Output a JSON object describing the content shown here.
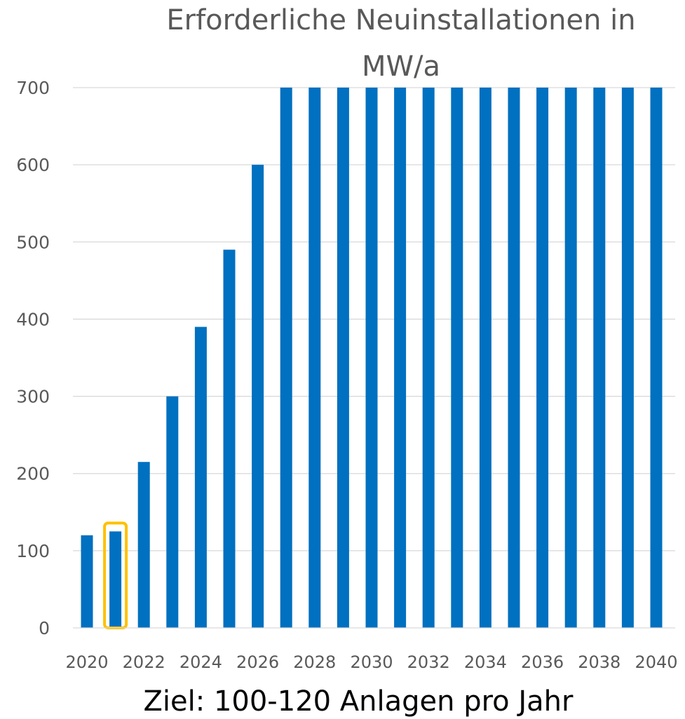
{
  "chart_data": {
    "type": "bar",
    "title_lines": [
      "Erforderliche Neuinstallationen in",
      "MW/a"
    ],
    "categories": [
      "2020",
      "2021",
      "2022",
      "2023",
      "2024",
      "2025",
      "2026",
      "2027",
      "2028",
      "2029",
      "2030",
      "2031",
      "2032",
      "2033",
      "2034",
      "2035",
      "2036",
      "2037",
      "2038",
      "2039",
      "2040"
    ],
    "values": [
      120,
      125,
      215,
      300,
      390,
      490,
      600,
      700,
      700,
      700,
      700,
      700,
      700,
      700,
      700,
      700,
      700,
      700,
      700,
      700,
      700
    ],
    "x_tick_labels": [
      "2020",
      "2022",
      "2024",
      "2026",
      "2028",
      "2030",
      "2032",
      "2034",
      "2036",
      "2038",
      "2040"
    ],
    "y_ticks": [
      0,
      100,
      200,
      300,
      400,
      500,
      600,
      700
    ],
    "ylim": [
      0,
      700
    ],
    "grid": true,
    "bar_color": "#0070C0",
    "highlight": {
      "category": "2021",
      "color": "#FFC000"
    },
    "caption": "Ziel: 100-120 Anlagen pro Jahr"
  }
}
